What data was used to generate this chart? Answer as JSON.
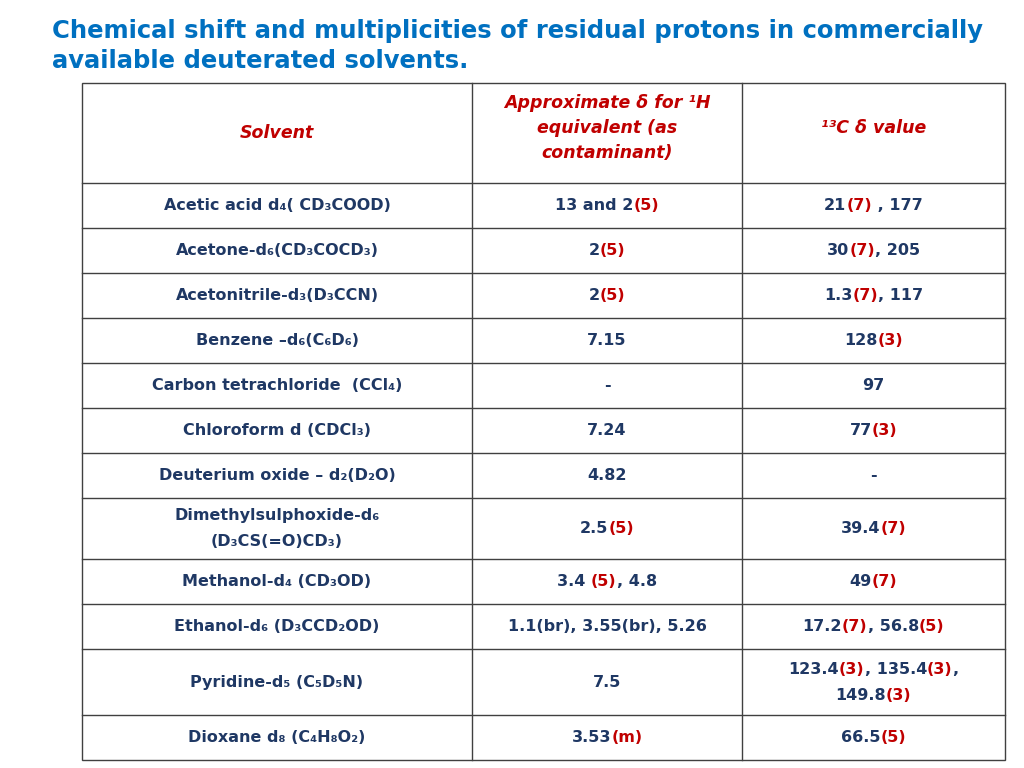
{
  "title_line1": "Chemical shift and multiplicities of residual protons in commercially",
  "title_line2": "available deuterated solvents.",
  "title_color": "#0070C0",
  "title_fontsize": 17.5,
  "header_color": "#C00000",
  "cell_text_color": "#1F3864",
  "red_color": "#C00000",
  "rows": [
    {
      "solvent_display": "Acetic acid d₄( CD₃COOD)",
      "h1_parts": [
        {
          "text": "13 and 2",
          "color": "#1F3864"
        },
        {
          "text": "(5)",
          "color": "#C00000"
        }
      ],
      "c13_parts": [
        {
          "text": "21",
          "color": "#1F3864"
        },
        {
          "text": "(7)",
          "color": "#C00000"
        },
        {
          "text": " , 177",
          "color": "#1F3864"
        }
      ],
      "multiline": false
    },
    {
      "solvent_display": "Acetone-d₆(CD₃COCD₃)",
      "h1_parts": [
        {
          "text": "2",
          "color": "#1F3864"
        },
        {
          "text": "(5)",
          "color": "#C00000"
        }
      ],
      "c13_parts": [
        {
          "text": "30",
          "color": "#1F3864"
        },
        {
          "text": "(7)",
          "color": "#C00000"
        },
        {
          "text": ", 205",
          "color": "#1F3864"
        }
      ],
      "multiline": false
    },
    {
      "solvent_display": "Acetonitrile-d₃(D₃CCN)",
      "h1_parts": [
        {
          "text": "2",
          "color": "#1F3864"
        },
        {
          "text": "(5)",
          "color": "#C00000"
        }
      ],
      "c13_parts": [
        {
          "text": "1.3",
          "color": "#1F3864"
        },
        {
          "text": "(7)",
          "color": "#C00000"
        },
        {
          "text": ", 117",
          "color": "#1F3864"
        }
      ],
      "multiline": false
    },
    {
      "solvent_display": "Benzene –d₆(C₆D₆)",
      "h1_parts": [
        {
          "text": "7.15",
          "color": "#1F3864"
        }
      ],
      "c13_parts": [
        {
          "text": "128",
          "color": "#1F3864"
        },
        {
          "text": "(3)",
          "color": "#C00000"
        }
      ],
      "multiline": false
    },
    {
      "solvent_display": "Carbon tetrachloride  (CCl₄)",
      "h1_parts": [
        {
          "text": "-",
          "color": "#1F3864"
        }
      ],
      "c13_parts": [
        {
          "text": "97",
          "color": "#1F3864"
        }
      ],
      "multiline": false
    },
    {
      "solvent_display": "Chloroform d (CDCl₃)",
      "h1_parts": [
        {
          "text": "7.24",
          "color": "#1F3864"
        }
      ],
      "c13_parts": [
        {
          "text": "77",
          "color": "#1F3864"
        },
        {
          "text": "(3)",
          "color": "#C00000"
        }
      ],
      "multiline": false
    },
    {
      "solvent_display": "Deuterium oxide – d₂(D₂O)",
      "h1_parts": [
        {
          "text": "4.82",
          "color": "#1F3864"
        }
      ],
      "c13_parts": [
        {
          "text": "-",
          "color": "#1F3864"
        }
      ],
      "multiline": false
    },
    {
      "solvent_display": "Dimethylsulphoxide-d₆",
      "solvent_display2": "(D₃CS(=O)CD₃)",
      "h1_parts": [
        {
          "text": "2.5",
          "color": "#1F3864"
        },
        {
          "text": "(5)",
          "color": "#C00000"
        }
      ],
      "c13_parts": [
        {
          "text": "39.4",
          "color": "#1F3864"
        },
        {
          "text": "(7)",
          "color": "#C00000"
        }
      ],
      "multiline": true
    },
    {
      "solvent_display": "Methanol-d₄ (CD₃OD)",
      "h1_parts": [
        {
          "text": "3.4 ",
          "color": "#1F3864"
        },
        {
          "text": "(5)",
          "color": "#C00000"
        },
        {
          "text": ", 4.8",
          "color": "#1F3864"
        }
      ],
      "c13_parts": [
        {
          "text": "49",
          "color": "#1F3864"
        },
        {
          "text": "(7)",
          "color": "#C00000"
        }
      ],
      "multiline": false
    },
    {
      "solvent_display": "Ethanol-d₆ (D₃CCD₂OD)",
      "h1_parts": [
        {
          "text": "1.1(br), 3.55(br), 5.26",
          "color": "#1F3864"
        }
      ],
      "c13_parts": [
        {
          "text": "17.2",
          "color": "#1F3864"
        },
        {
          "text": "(7)",
          "color": "#C00000"
        },
        {
          "text": ", 56.8",
          "color": "#1F3864"
        },
        {
          "text": "(5)",
          "color": "#C00000"
        }
      ],
      "multiline": false
    },
    {
      "solvent_display": "Pyridine-d₅ (C₅D₅N)",
      "h1_parts": [
        {
          "text": "7.5",
          "color": "#1F3864"
        }
      ],
      "c13_parts": [
        {
          "text": "123.4",
          "color": "#1F3864"
        },
        {
          "text": "(3)",
          "color": "#C00000"
        },
        {
          "text": ", 135.4",
          "color": "#1F3864"
        },
        {
          "text": "(3)",
          "color": "#C00000"
        },
        {
          "text": ",",
          "color": "#1F3864"
        }
      ],
      "c13_parts2": [
        {
          "text": "149.8",
          "color": "#1F3864"
        },
        {
          "text": "(3)",
          "color": "#C00000"
        }
      ],
      "multiline": true
    },
    {
      "solvent_display": "Dioxane d₈ (C₄H₈O₂)",
      "h1_parts": [
        {
          "text": "3.53",
          "color": "#1F3864"
        },
        {
          "text": "(m)",
          "color": "#C00000"
        }
      ],
      "c13_parts": [
        {
          "text": "66.5",
          "color": "#1F3864"
        },
        {
          "text": "(5)",
          "color": "#C00000"
        }
      ],
      "multiline": false
    }
  ],
  "font_size": 11.5,
  "header_font_size": 12.5
}
